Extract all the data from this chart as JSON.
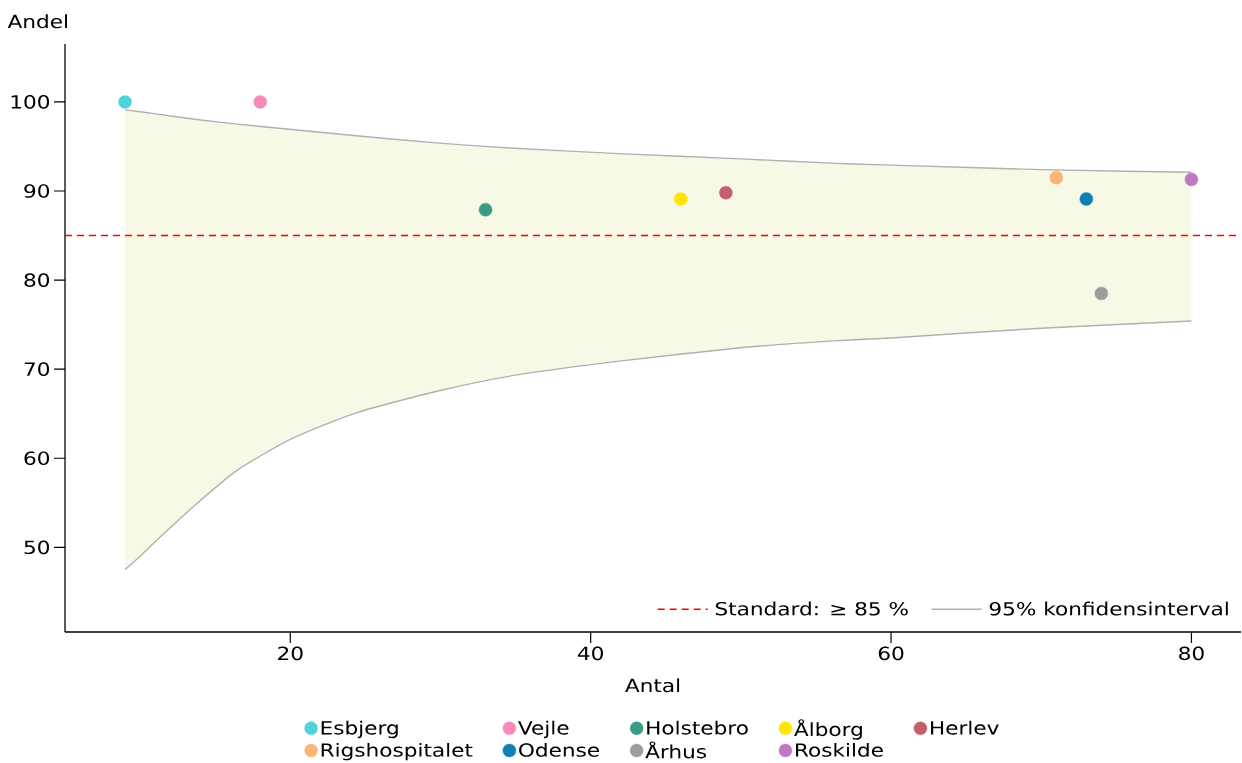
{
  "chart_data": {
    "type": "scatter",
    "xlabel": "Antal",
    "ylabel": "Andel",
    "xlim": [
      5,
      83.3
    ],
    "ylim": [
      40.5,
      106.5
    ],
    "xticks": [
      20,
      40,
      60,
      80
    ],
    "yticks": [
      50,
      60,
      70,
      80,
      90,
      100
    ],
    "marker": "circle",
    "legend": "bottom",
    "series": [
      {
        "name": "Esbjerg",
        "color": "#4fd3da",
        "x": [
          9
        ],
        "values": [
          100
        ]
      },
      {
        "name": "Vejle",
        "color": "#f78ab8",
        "x": [
          18
        ],
        "values": [
          100
        ]
      },
      {
        "name": "Holstebro",
        "color": "#3d9a86",
        "x": [
          33
        ],
        "values": [
          87.9
        ]
      },
      {
        "name": "Ålborg",
        "color": "#ffe600",
        "x": [
          46
        ],
        "values": [
          89.1
        ]
      },
      {
        "name": "Herlev",
        "color": "#c4606a",
        "x": [
          49
        ],
        "values": [
          89.8
        ]
      },
      {
        "name": "Rigshospitalet",
        "color": "#f8b574",
        "x": [
          71
        ],
        "values": [
          91.5
        ]
      },
      {
        "name": "Odense",
        "color": "#117fb5",
        "x": [
          73
        ],
        "values": [
          89.1
        ]
      },
      {
        "name": "Århus",
        "color": "#9d9d9d",
        "x": [
          74
        ],
        "values": [
          78.5
        ]
      },
      {
        "name": "Roskilde",
        "color": "#bf79c3",
        "x": [
          80
        ],
        "values": [
          91.3
        ]
      },
      {
        "name": "95% konfidensinterval",
        "type": "line",
        "marker": "none",
        "color": "#b0b0b0",
        "x": [
          9,
          10,
          11.3,
          13.9,
          16.5,
          20.1,
          24.4,
          29.7,
          34.9,
          41.9,
          50,
          56.4,
          60,
          70,
          80
        ],
        "values": [
          99.1,
          98.9,
          98.6,
          98.0,
          97.5,
          96.9,
          96.2,
          95.4,
          94.8,
          94.2,
          93.6,
          93.1,
          92.9,
          92.4,
          92.1
        ],
        "upper": [
          99.1,
          98.9,
          98.6,
          98.0,
          97.5,
          96.9,
          96.2,
          95.4,
          94.8,
          94.2,
          93.6,
          93.1,
          92.9,
          92.4,
          92.1
        ],
        "lower": [
          47.5,
          49.0,
          51.1,
          55.1,
          58.7,
          62.2,
          65.1,
          67.5,
          69.3,
          70.9,
          72.4,
          73.2,
          73.5,
          74.6,
          75.4
        ]
      },
      {
        "type": "line",
        "marker": "none",
        "color": "#b0b0b0",
        "x": [
          9,
          10,
          11.3,
          13.9,
          16.5,
          20.1,
          24.4,
          29.7,
          34.9,
          41.9,
          50,
          56.4,
          60,
          70,
          80
        ],
        "values": [
          47.5,
          49.0,
          51.1,
          55.1,
          58.7,
          62.2,
          65.1,
          67.5,
          69.3,
          70.9,
          72.4,
          73.2,
          73.5,
          74.6,
          75.4
        ]
      }
    ],
    "ref_lines": [
      {
        "axis": "y",
        "value": 85,
        "label": "Standard: ≥ 85 %",
        "color": "#ff0000",
        "line_style": "dashed"
      }
    ]
  }
}
